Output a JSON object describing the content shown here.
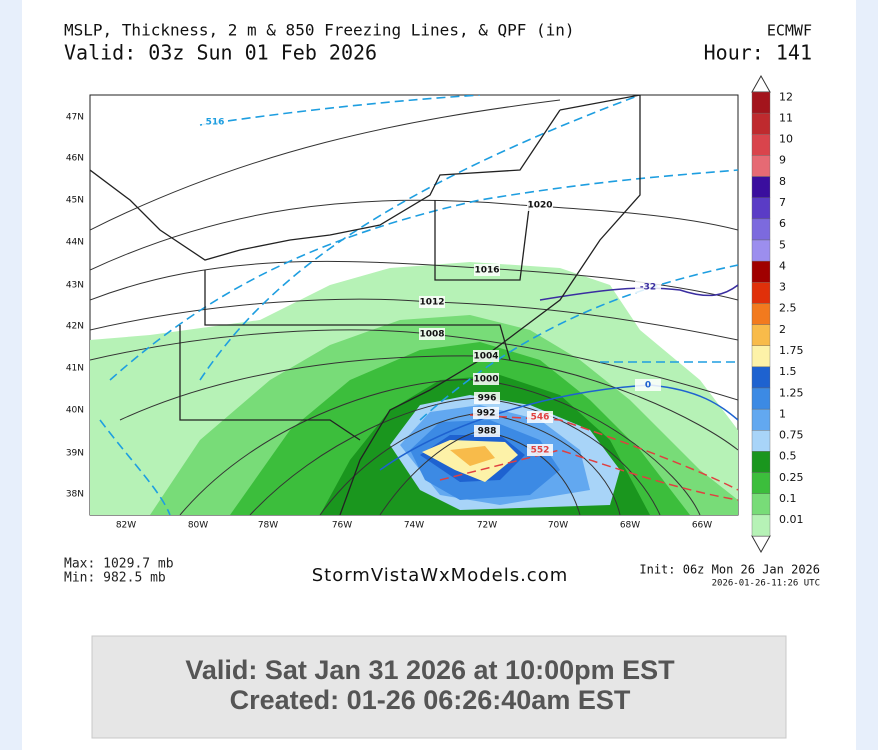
{
  "header": {
    "title": "MSLP, Thickness, 2 m & 850 Freezing Lines, & QPF (in)",
    "model": "ECMWF",
    "valid": "Valid: 03z Sun 01 Feb 2026",
    "hour": "Hour: 141"
  },
  "map": {
    "lat_labels": [
      "47N",
      "46N",
      "45N",
      "44N",
      "43N",
      "42N",
      "41N",
      "40N",
      "39N",
      "38N"
    ],
    "lon_labels": [
      "82W",
      "80W",
      "78W",
      "76W",
      "74W",
      "72W",
      "70W",
      "68W",
      "66W"
    ],
    "contour_labels": [
      "516",
      "1020",
      "1016",
      "1012",
      "1008",
      "1004",
      "1000",
      "996",
      "992",
      "988",
      "546",
      "552",
      "0",
      "-32"
    ]
  },
  "colorbar": {
    "levels": [
      {
        "label": "12",
        "color": "#a3141c"
      },
      {
        "label": "11",
        "color": "#bf2a2e"
      },
      {
        "label": "10",
        "color": "#d9444c"
      },
      {
        "label": "9",
        "color": "#e66a74"
      },
      {
        "label": "8",
        "color": "#3a0e9e"
      },
      {
        "label": "7",
        "color": "#5a3cc6"
      },
      {
        "label": "6",
        "color": "#7c6ade"
      },
      {
        "label": "5",
        "color": "#9c8eee"
      },
      {
        "label": "4",
        "color": "#a00000"
      },
      {
        "label": "3",
        "color": "#e0300a"
      },
      {
        "label": "2.5",
        "color": "#f27a1e"
      },
      {
        "label": "2",
        "color": "#f8bb4a"
      },
      {
        "label": "1.75",
        "color": "#fdf2a8"
      },
      {
        "label": "1.5",
        "color": "#1e62d0"
      },
      {
        "label": "1.25",
        "color": "#3c8ae4"
      },
      {
        "label": "1",
        "color": "#62a8f0"
      },
      {
        "label": "0.75",
        "color": "#a8d4f8"
      },
      {
        "label": "0.5",
        "color": "#1a961e"
      },
      {
        "label": "0.25",
        "color": "#3cbe3c"
      },
      {
        "label": "0.1",
        "color": "#78dc78"
      },
      {
        "label": "0.01",
        "color": "#b6f2b6"
      }
    ]
  },
  "footer": {
    "max": "Max: 1029.7 mb",
    "min": "Min: 982.5 mb",
    "site": "StormVistaWxModels.com",
    "init": "Init: 06z Mon 26 Jan 2026",
    "stamp": "2026-01-26-11:26 UTC"
  },
  "banner": {
    "valid": "Valid: Sat Jan 31 2026 at 10:00pm EST",
    "created": "Created: 01-26 06:26:40am EST"
  }
}
